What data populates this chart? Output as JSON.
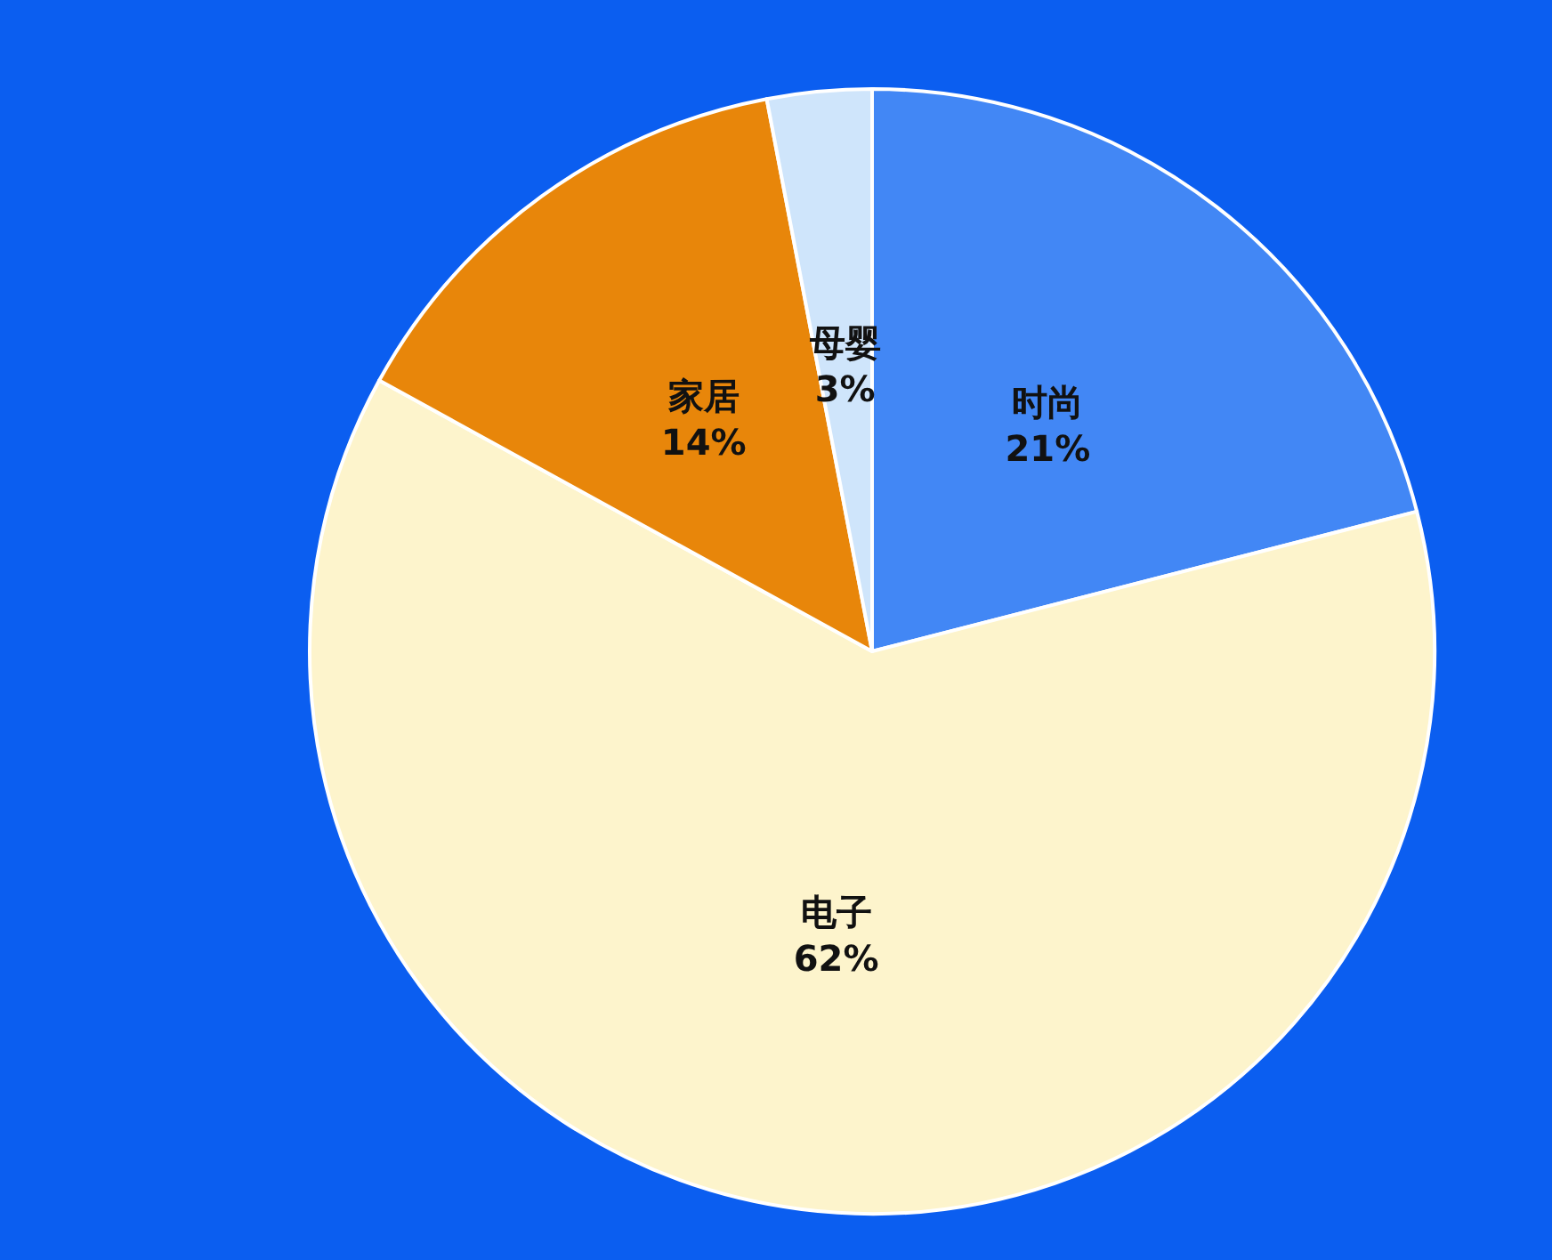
{
  "chart_data": {
    "type": "pie",
    "categories": [
      "时尚",
      "电子",
      "家居",
      "母婴"
    ],
    "values": [
      21,
      62,
      14,
      3
    ],
    "value_labels": [
      "21%",
      "62%",
      "14%",
      "3%"
    ],
    "colors": [
      "#4287f5",
      "#fdf4cc",
      "#e8860a",
      "#cfe5fb"
    ],
    "legend": false
  }
}
